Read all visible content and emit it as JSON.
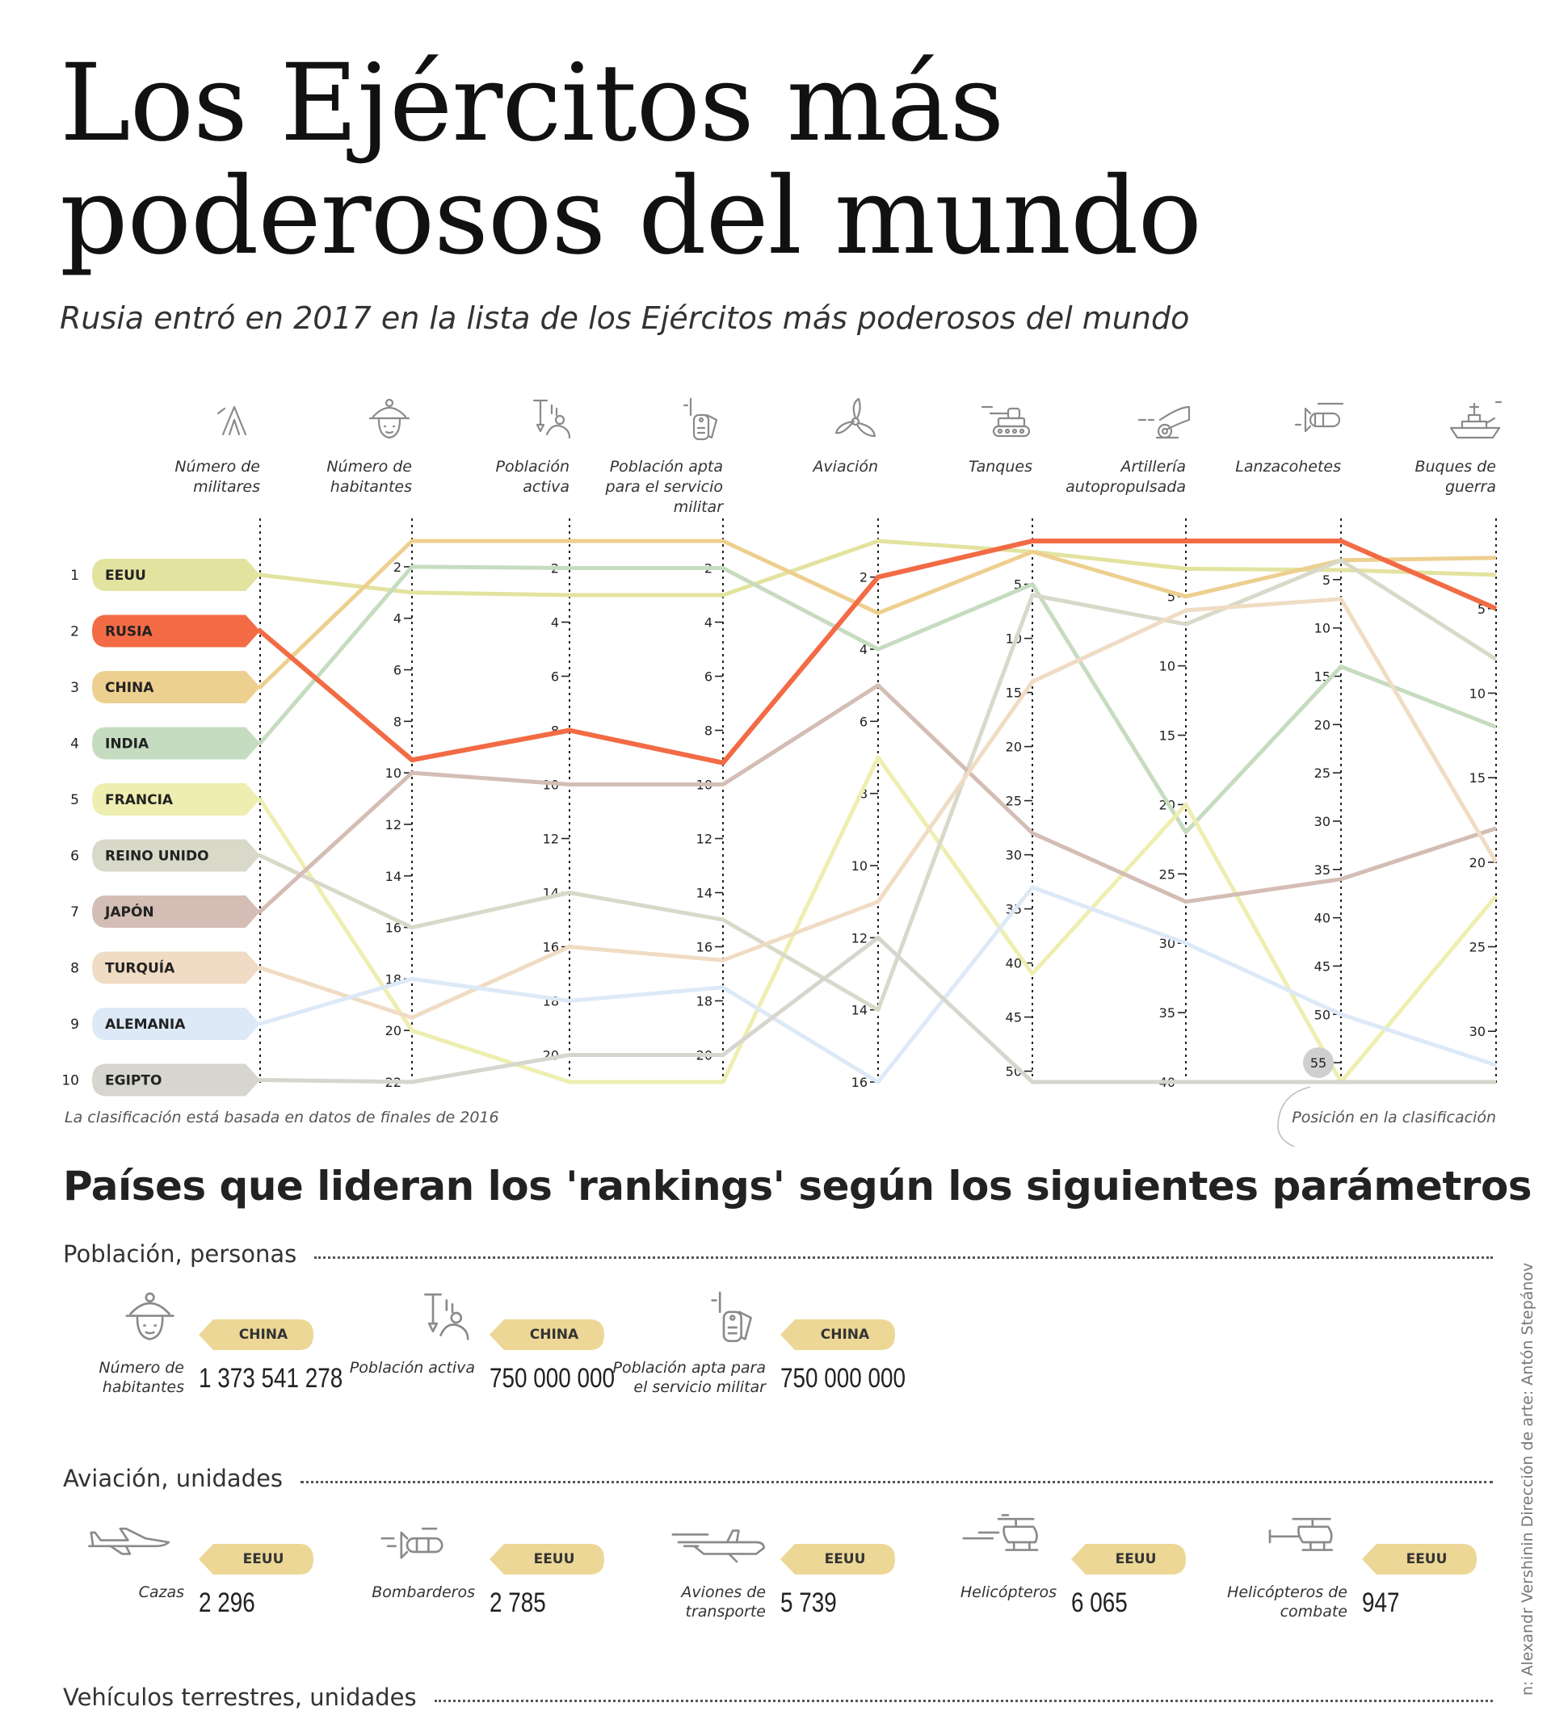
{
  "title": "Los Ejércitos más poderosos del mundo",
  "subtitle": "Rusia entró en 2017 en la lista de los Ejércitos más poderosos del mundo",
  "chart_data": {
    "type": "line",
    "title": "Los Ejércitos más poderosos del mundo",
    "columns": [
      {
        "label": [
          "Número de",
          "militares"
        ],
        "icon": "soldier-helmet-icon",
        "max": 10,
        "ticks": []
      },
      {
        "label": [
          "Número de",
          "habitantes"
        ],
        "icon": "person-hat-icon",
        "max": 22,
        "ticks": [
          2,
          4,
          6,
          8,
          10,
          12,
          14,
          16,
          18,
          20,
          22
        ]
      },
      {
        "label": [
          "Población",
          "activa"
        ],
        "icon": "worker-shovel-icon",
        "max": 21,
        "ticks": [
          2,
          4,
          6,
          8,
          10,
          12,
          14,
          16,
          18,
          20
        ]
      },
      {
        "label": [
          "Población apta",
          "para el servicio",
          "militar"
        ],
        "icon": "dog-tag-icon",
        "max": 21,
        "ticks": [
          2,
          4,
          6,
          8,
          10,
          12,
          14,
          16,
          18,
          20
        ]
      },
      {
        "label": [
          "Aviación"
        ],
        "icon": "propeller-icon",
        "max": 16,
        "ticks": [
          2,
          4,
          6,
          8,
          10,
          12,
          14,
          16
        ]
      },
      {
        "label": [
          "Tanques"
        ],
        "icon": "tank-icon",
        "max": 51,
        "ticks": [
          5,
          10,
          15,
          20,
          25,
          30,
          35,
          40,
          45,
          50
        ]
      },
      {
        "label": [
          "Artillería",
          "autopropulsada"
        ],
        "icon": "cannon-icon",
        "max": 40,
        "ticks": [
          5,
          10,
          15,
          20,
          25,
          30,
          35,
          40
        ]
      },
      {
        "label": [
          "Lanzacohetes"
        ],
        "icon": "rocket-icon",
        "max": 57,
        "ticks": [
          5,
          10,
          15,
          20,
          25,
          30,
          35,
          40,
          45,
          50,
          55
        ]
      },
      {
        "label": [
          "Buques de",
          "guerra"
        ],
        "icon": "warship-icon",
        "max": 33,
        "ticks": [
          5,
          10,
          15,
          20,
          25,
          30
        ]
      }
    ],
    "series": [
      {
        "name": "EEUU",
        "color": "#e3e3a0",
        "values": [
          1,
          3,
          3,
          3,
          1,
          2,
          3,
          4,
          3
        ]
      },
      {
        "name": "RUSIA",
        "color": "#f26b45",
        "values": [
          2,
          9.5,
          8,
          9.2,
          2,
          1,
          1,
          1,
          5
        ]
      },
      {
        "name": "CHINA",
        "color": "#edcf8f",
        "values": [
          3,
          1,
          1,
          1,
          3,
          2,
          5,
          3,
          2
        ]
      },
      {
        "name": "INDIA",
        "color": "#c6dcc0",
        "values": [
          4,
          2,
          2,
          2,
          4,
          5,
          22,
          14,
          12
        ]
      },
      {
        "name": "FRANCIA",
        "color": "#eeeeb0",
        "values": [
          5,
          20,
          21,
          21,
          7,
          41,
          20,
          57,
          22
        ]
      },
      {
        "name": "REINO UNIDO",
        "color": "#d8d9c9",
        "values": [
          6,
          16,
          14,
          15,
          14,
          6,
          7,
          3,
          8
        ]
      },
      {
        "name": "JAPÓN",
        "color": "#d3bdb4",
        "values": [
          7,
          10,
          10,
          10,
          5,
          28,
          27,
          36,
          18
        ]
      },
      {
        "name": "TURQUÍA",
        "color": "#f0dcc4",
        "values": [
          8,
          19.5,
          16,
          16.5,
          11,
          14,
          6,
          7,
          20
        ]
      },
      {
        "name": "ALEMANIA",
        "color": "#dde9f7",
        "values": [
          9,
          18,
          18,
          17.5,
          16,
          33,
          30,
          50,
          32
        ]
      },
      {
        "name": "EGIPTO",
        "color": "#d6d6ce",
        "values": [
          10,
          22,
          20,
          20,
          12,
          51,
          40,
          57,
          33
        ]
      }
    ],
    "highlight": {
      "column": 7,
      "value": "55"
    },
    "note_left": "La clasificación está basada en datos de finales de 2016",
    "note_right": "Posición en la clasificación"
  },
  "leaders": {
    "heading": "Países que lideran los 'rankings' según los siguientes parámetros",
    "sections": [
      {
        "title": "Población, personas",
        "items": [
          {
            "icon": "person-hat-icon",
            "label": "Número de habitantes",
            "country": "CHINA",
            "value": "1 373 541 278"
          },
          {
            "icon": "worker-shovel-icon",
            "label": "Población activa",
            "country": "CHINA",
            "value": "750 000 000"
          },
          {
            "icon": "dog-tag-icon",
            "label": "Población apta para el servicio militar",
            "country": "CHINA",
            "value": "750 000 000"
          }
        ]
      },
      {
        "title": "Aviación, unidades",
        "items": [
          {
            "icon": "fighter-jet-icon",
            "label": "Cazas",
            "country": "EEUU",
            "value": "2 296"
          },
          {
            "icon": "bomber-icon",
            "label": "Bombarderos",
            "country": "EEUU",
            "value": "2 785"
          },
          {
            "icon": "transport-plane-icon",
            "label": "Aviones de transporte",
            "country": "EEUU",
            "value": "5 739"
          },
          {
            "icon": "helicopter-icon",
            "label": "Helicópteros",
            "country": "EEUU",
            "value": "6 065"
          },
          {
            "icon": "attack-helicopter-icon",
            "label": "Helicópteros de combate",
            "country": "EEUU",
            "value": "947"
          }
        ]
      },
      {
        "title": "Vehículos terrestres, unidades",
        "items": []
      }
    ]
  },
  "credit": "n: Alexandr Vershinin Dirección de arte: Antón Stepánov"
}
